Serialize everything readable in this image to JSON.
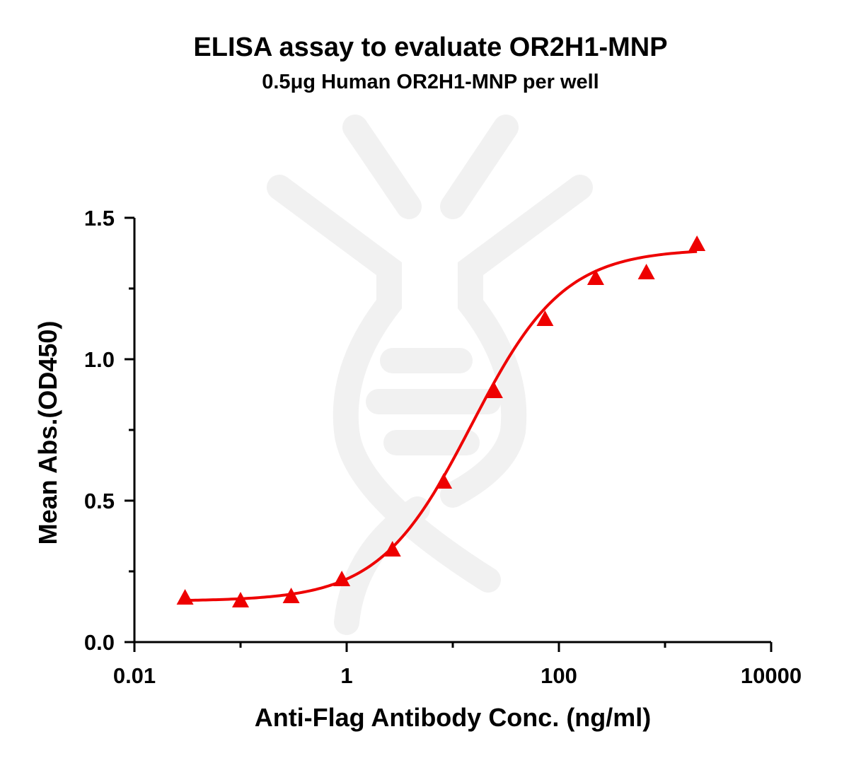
{
  "chart_data": {
    "type": "scatter",
    "title": "ELISA assay to evaluate OR2H1-MNP",
    "subtitle": "0.5μg Human OR2H1-MNP per well",
    "xlabel": "Anti-Flag Antibody Conc. (ng/ml)",
    "ylabel": "Mean Abs.(OD450)",
    "xscale": "log",
    "xlim": [
      0.01,
      10000
    ],
    "ylim": [
      0,
      1.5
    ],
    "xticks": [
      "0.01",
      "1",
      "100",
      "10000"
    ],
    "yticks": [
      "0.0",
      "0.5",
      "1.0",
      "1.5"
    ],
    "grid": false,
    "legend": "none",
    "series": [
      {
        "marker": "triangle",
        "color": "#ee0000",
        "x": [
          0.03,
          0.1,
          0.3,
          0.9,
          2.7,
          8.2,
          24.7,
          74,
          222,
          667,
          2000
        ],
        "y": [
          0.155,
          0.145,
          0.16,
          0.22,
          0.325,
          0.565,
          0.885,
          1.14,
          1.285,
          1.305,
          1.405
        ]
      }
    ],
    "fit_curve": {
      "type": "four-parameter logistic",
      "color": "#ee0000",
      "bottom": 0.145,
      "top": 1.39,
      "ec50": 15,
      "hill": 1.0,
      "x_range": [
        0.03,
        2000
      ]
    }
  }
}
